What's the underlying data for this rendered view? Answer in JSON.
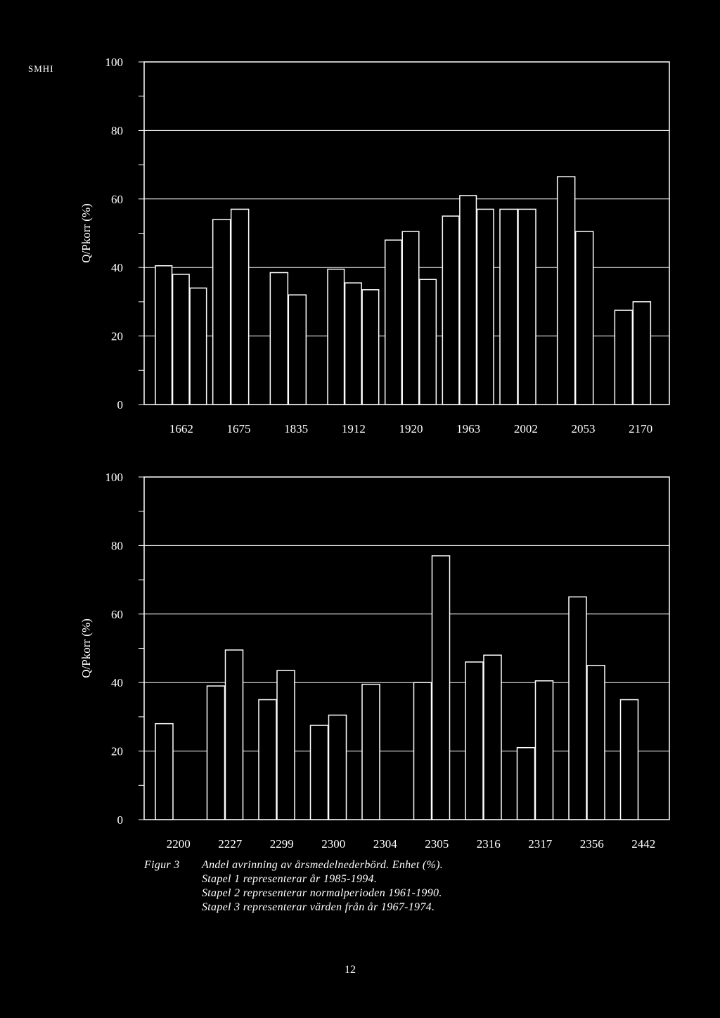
{
  "header": {
    "label": "SMHI"
  },
  "chart_data": [
    {
      "type": "bar",
      "ylabel": "Q/Pkorr (%)",
      "ylim": [
        0,
        100
      ],
      "yticks": [
        "0",
        "20",
        "40",
        "60",
        "80",
        "100"
      ],
      "grid": "horizontal reference lines at 20, 40, 60, 80",
      "categories": [
        "1662",
        "1675",
        "1835",
        "1912",
        "1920",
        "1963",
        "2002",
        "2053",
        "2170"
      ],
      "series": [
        {
          "values": [
            40.5,
            54,
            38.5,
            39.5,
            48,
            55,
            57,
            66.5,
            27.5
          ]
        },
        {
          "values": [
            38,
            57,
            32,
            35.5,
            50.5,
            61,
            57,
            50.5,
            30
          ]
        },
        {
          "values": [
            34,
            null,
            null,
            33.5,
            36.5,
            57,
            null,
            null,
            null
          ]
        }
      ]
    },
    {
      "type": "bar",
      "ylabel": "Q/Pkorr (%)",
      "ylim": [
        0,
        100
      ],
      "yticks": [
        "0",
        "20",
        "40",
        "60",
        "80",
        "100"
      ],
      "grid": "horizontal reference lines at 20, 40, 60, 80",
      "categories": [
        "2200",
        "2227",
        "2299",
        "2300",
        "2304",
        "2305",
        "2316",
        "2317",
        "2356",
        "2442"
      ],
      "series": [
        {
          "values": [
            28,
            39,
            35,
            27.5,
            39.5,
            40,
            46,
            21,
            65,
            35
          ]
        },
        {
          "values": [
            null,
            49.5,
            43.5,
            30.5,
            null,
            null,
            48,
            40.5,
            45,
            null
          ]
        },
        {
          "values": [
            null,
            null,
            null,
            null,
            null,
            77,
            null,
            null,
            null,
            null
          ]
        }
      ]
    }
  ],
  "caption": {
    "label": "Figur 3",
    "lines": [
      "Andel avrinning av årsmedelnederbörd. Enhet (%).",
      "Stapel 1 representerar år 1985-1994.",
      "Stapel 2 representerar normalperioden 1961-1990.",
      "Stapel 3 representerar värden från år 1967-1974."
    ]
  },
  "page_number": "12",
  "colors": {
    "background": "#000000",
    "foreground": "#ffffff"
  }
}
